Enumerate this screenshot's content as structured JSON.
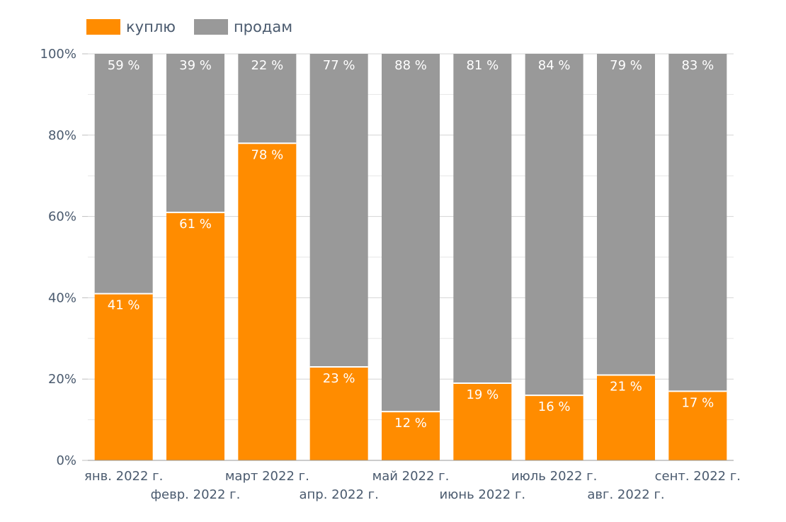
{
  "chart_data": {
    "type": "bar",
    "stacked": true,
    "categories": [
      "янв. 2022 г.",
      "февр. 2022 г.",
      "март 2022 г.",
      "апр. 2022 г.",
      "май 2022 г.",
      "июнь 2022 г.",
      "июль 2022 г.",
      "авг. 2022 г.",
      "сент. 2022 г."
    ],
    "series": [
      {
        "name": "куплю",
        "color": "#FF8C00",
        "values": [
          41,
          61,
          78,
          23,
          12,
          19,
          16,
          21,
          17
        ],
        "labels": [
          "41 %",
          "61 %",
          "78 %",
          "23 %",
          "12 %",
          "19 %",
          "16 %",
          "21 %",
          "17 %"
        ]
      },
      {
        "name": "продам",
        "color": "#999999",
        "values": [
          59,
          39,
          22,
          77,
          88,
          81,
          84,
          79,
          83
        ],
        "labels": [
          "59 %",
          "39 %",
          "22 %",
          "77 %",
          "88 %",
          "81 %",
          "84 %",
          "79 %",
          "83 %"
        ]
      }
    ],
    "ylim": [
      0,
      100
    ],
    "yticks": [
      "0%",
      "20%",
      "40%",
      "60%",
      "80%",
      "100%"
    ],
    "grid": true,
    "legend": "top-left",
    "title": "",
    "xlabel": "",
    "ylabel": ""
  }
}
